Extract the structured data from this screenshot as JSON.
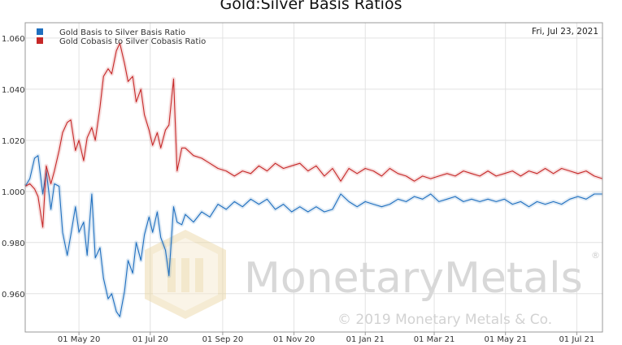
{
  "chart_data": {
    "type": "line",
    "title": "Gold:Silver Basis Ratios",
    "date": "Fri, Jul 23, 2021",
    "ylim": [
      0.945,
      1.066
    ],
    "y_ticks": [
      "0.960",
      "0.980",
      "1.000",
      "1.020",
      "1.040",
      "1.060"
    ],
    "x_ticks": [
      "01 May 20",
      "01 Jul 20",
      "01 Sep 20",
      "01 Nov 20",
      "01 Jan 21",
      "01 Mar 21",
      "01 May 21",
      "01 Jul 21"
    ],
    "x_tick_dates": [
      "2020-05-01",
      "2020-07-01",
      "2020-09-01",
      "2020-11-01",
      "2021-01-01",
      "2021-03-01",
      "2021-05-01",
      "2021-07-01"
    ],
    "xlim": [
      "2020-03-16",
      "2021-07-23"
    ],
    "grid": true,
    "legend_position": "top-left",
    "series": [
      {
        "name": "Gold Basis to Silver Basis Ratio",
        "color": "#1f6fbf",
        "points": [
          [
            "2020-03-16",
            1.002
          ],
          [
            "2020-03-20",
            1.005
          ],
          [
            "2020-03-24",
            1.013
          ],
          [
            "2020-03-27",
            1.014
          ],
          [
            "2020-03-31",
            0.999
          ],
          [
            "2020-04-03",
            1.008
          ],
          [
            "2020-04-07",
            0.993
          ],
          [
            "2020-04-10",
            1.003
          ],
          [
            "2020-04-14",
            1.002
          ],
          [
            "2020-04-17",
            0.984
          ],
          [
            "2020-04-21",
            0.975
          ],
          [
            "2020-04-24",
            0.983
          ],
          [
            "2020-04-28",
            0.994
          ],
          [
            "2020-05-01",
            0.984
          ],
          [
            "2020-05-05",
            0.988
          ],
          [
            "2020-05-08",
            0.975
          ],
          [
            "2020-05-12",
            0.999
          ],
          [
            "2020-05-15",
            0.974
          ],
          [
            "2020-05-19",
            0.978
          ],
          [
            "2020-05-22",
            0.966
          ],
          [
            "2020-05-26",
            0.958
          ],
          [
            "2020-05-29",
            0.96
          ],
          [
            "2020-06-02",
            0.953
          ],
          [
            "2020-06-05",
            0.951
          ],
          [
            "2020-06-09",
            0.961
          ],
          [
            "2020-06-12",
            0.973
          ],
          [
            "2020-06-16",
            0.968
          ],
          [
            "2020-06-19",
            0.98
          ],
          [
            "2020-06-23",
            0.973
          ],
          [
            "2020-06-26",
            0.983
          ],
          [
            "2020-06-30",
            0.99
          ],
          [
            "2020-07-03",
            0.984
          ],
          [
            "2020-07-07",
            0.992
          ],
          [
            "2020-07-10",
            0.982
          ],
          [
            "2020-07-14",
            0.977
          ],
          [
            "2020-07-17",
            0.967
          ],
          [
            "2020-07-21",
            0.994
          ],
          [
            "2020-07-24",
            0.988
          ],
          [
            "2020-07-28",
            0.987
          ],
          [
            "2020-07-31",
            0.991
          ],
          [
            "2020-08-07",
            0.988
          ],
          [
            "2020-08-14",
            0.992
          ],
          [
            "2020-08-21",
            0.99
          ],
          [
            "2020-08-28",
            0.995
          ],
          [
            "2020-09-04",
            0.993
          ],
          [
            "2020-09-11",
            0.996
          ],
          [
            "2020-09-18",
            0.994
          ],
          [
            "2020-09-25",
            0.997
          ],
          [
            "2020-10-02",
            0.995
          ],
          [
            "2020-10-09",
            0.997
          ],
          [
            "2020-10-16",
            0.993
          ],
          [
            "2020-10-23",
            0.995
          ],
          [
            "2020-10-30",
            0.992
          ],
          [
            "2020-11-06",
            0.994
          ],
          [
            "2020-11-13",
            0.992
          ],
          [
            "2020-11-20",
            0.994
          ],
          [
            "2020-11-27",
            0.992
          ],
          [
            "2020-12-04",
            0.993
          ],
          [
            "2020-12-11",
            0.999
          ],
          [
            "2020-12-18",
            0.996
          ],
          [
            "2020-12-25",
            0.994
          ],
          [
            "2021-01-01",
            0.996
          ],
          [
            "2021-01-08",
            0.995
          ],
          [
            "2021-01-15",
            0.994
          ],
          [
            "2021-01-22",
            0.995
          ],
          [
            "2021-01-29",
            0.997
          ],
          [
            "2021-02-05",
            0.996
          ],
          [
            "2021-02-12",
            0.998
          ],
          [
            "2021-02-19",
            0.997
          ],
          [
            "2021-02-26",
            0.999
          ],
          [
            "2021-03-05",
            0.996
          ],
          [
            "2021-03-12",
            0.997
          ],
          [
            "2021-03-19",
            0.998
          ],
          [
            "2021-03-26",
            0.996
          ],
          [
            "2021-04-02",
            0.997
          ],
          [
            "2021-04-09",
            0.996
          ],
          [
            "2021-04-16",
            0.997
          ],
          [
            "2021-04-23",
            0.996
          ],
          [
            "2021-04-30",
            0.997
          ],
          [
            "2021-05-07",
            0.995
          ],
          [
            "2021-05-14",
            0.996
          ],
          [
            "2021-05-21",
            0.994
          ],
          [
            "2021-05-28",
            0.996
          ],
          [
            "2021-06-04",
            0.995
          ],
          [
            "2021-06-11",
            0.996
          ],
          [
            "2021-06-18",
            0.995
          ],
          [
            "2021-06-25",
            0.997
          ],
          [
            "2021-07-02",
            0.998
          ],
          [
            "2021-07-09",
            0.997
          ],
          [
            "2021-07-16",
            0.999
          ],
          [
            "2021-07-23",
            0.999
          ]
        ]
      },
      {
        "name": "Gold Cobasis to Silver Cobasis Ratio",
        "color": "#c62828",
        "points": [
          [
            "2020-03-16",
            1.002
          ],
          [
            "2020-03-20",
            1.003
          ],
          [
            "2020-03-24",
            1.001
          ],
          [
            "2020-03-27",
            0.998
          ],
          [
            "2020-03-31",
            0.986
          ],
          [
            "2020-04-03",
            1.01
          ],
          [
            "2020-04-07",
            1.003
          ],
          [
            "2020-04-10",
            1.008
          ],
          [
            "2020-04-14",
            1.016
          ],
          [
            "2020-04-17",
            1.023
          ],
          [
            "2020-04-21",
            1.027
          ],
          [
            "2020-04-24",
            1.028
          ],
          [
            "2020-04-28",
            1.016
          ],
          [
            "2020-05-01",
            1.02
          ],
          [
            "2020-05-05",
            1.012
          ],
          [
            "2020-05-08",
            1.021
          ],
          [
            "2020-05-12",
            1.025
          ],
          [
            "2020-05-15",
            1.02
          ],
          [
            "2020-05-19",
            1.033
          ],
          [
            "2020-05-22",
            1.045
          ],
          [
            "2020-05-26",
            1.048
          ],
          [
            "2020-05-29",
            1.046
          ],
          [
            "2020-06-02",
            1.055
          ],
          [
            "2020-06-05",
            1.058
          ],
          [
            "2020-06-09",
            1.05
          ],
          [
            "2020-06-12",
            1.043
          ],
          [
            "2020-06-16",
            1.045
          ],
          [
            "2020-06-19",
            1.035
          ],
          [
            "2020-06-23",
            1.04
          ],
          [
            "2020-06-26",
            1.03
          ],
          [
            "2020-06-30",
            1.024
          ],
          [
            "2020-07-03",
            1.018
          ],
          [
            "2020-07-07",
            1.023
          ],
          [
            "2020-07-10",
            1.017
          ],
          [
            "2020-07-14",
            1.024
          ],
          [
            "2020-07-17",
            1.026
          ],
          [
            "2020-07-21",
            1.044
          ],
          [
            "2020-07-24",
            1.008
          ],
          [
            "2020-07-28",
            1.017
          ],
          [
            "2020-07-31",
            1.017
          ],
          [
            "2020-08-07",
            1.014
          ],
          [
            "2020-08-14",
            1.013
          ],
          [
            "2020-08-21",
            1.011
          ],
          [
            "2020-08-28",
            1.009
          ],
          [
            "2020-09-04",
            1.008
          ],
          [
            "2020-09-11",
            1.006
          ],
          [
            "2020-09-18",
            1.008
          ],
          [
            "2020-09-25",
            1.007
          ],
          [
            "2020-10-02",
            1.01
          ],
          [
            "2020-10-09",
            1.008
          ],
          [
            "2020-10-16",
            1.011
          ],
          [
            "2020-10-23",
            1.009
          ],
          [
            "2020-10-30",
            1.01
          ],
          [
            "2020-11-06",
            1.011
          ],
          [
            "2020-11-13",
            1.008
          ],
          [
            "2020-11-20",
            1.01
          ],
          [
            "2020-11-27",
            1.006
          ],
          [
            "2020-12-04",
            1.009
          ],
          [
            "2020-12-11",
            1.004
          ],
          [
            "2020-12-18",
            1.009
          ],
          [
            "2020-12-25",
            1.007
          ],
          [
            "2021-01-01",
            1.009
          ],
          [
            "2021-01-08",
            1.008
          ],
          [
            "2021-01-15",
            1.006
          ],
          [
            "2021-01-22",
            1.009
          ],
          [
            "2021-01-29",
            1.007
          ],
          [
            "2021-02-05",
            1.006
          ],
          [
            "2021-02-12",
            1.004
          ],
          [
            "2021-02-19",
            1.006
          ],
          [
            "2021-02-26",
            1.005
          ],
          [
            "2021-03-05",
            1.006
          ],
          [
            "2021-03-12",
            1.007
          ],
          [
            "2021-03-19",
            1.006
          ],
          [
            "2021-03-26",
            1.008
          ],
          [
            "2021-04-02",
            1.007
          ],
          [
            "2021-04-09",
            1.006
          ],
          [
            "2021-04-16",
            1.008
          ],
          [
            "2021-04-23",
            1.006
          ],
          [
            "2021-04-30",
            1.007
          ],
          [
            "2021-05-07",
            1.008
          ],
          [
            "2021-05-14",
            1.006
          ],
          [
            "2021-05-21",
            1.008
          ],
          [
            "2021-05-28",
            1.007
          ],
          [
            "2021-06-04",
            1.009
          ],
          [
            "2021-06-11",
            1.007
          ],
          [
            "2021-06-18",
            1.009
          ],
          [
            "2021-06-25",
            1.008
          ],
          [
            "2021-07-02",
            1.007
          ],
          [
            "2021-07-09",
            1.008
          ],
          [
            "2021-07-16",
            1.006
          ],
          [
            "2021-07-23",
            1.005
          ]
        ]
      }
    ]
  },
  "watermark": {
    "brand": "MonetaryMetals",
    "registered": "®",
    "copyright": "© 2019 Monetary Metals & Co."
  }
}
